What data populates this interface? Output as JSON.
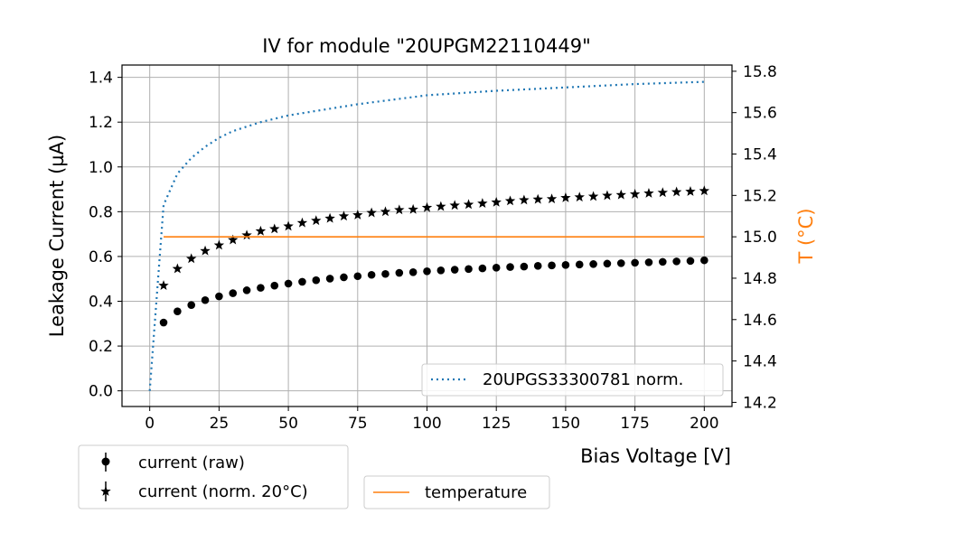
{
  "chart_data": {
    "type": "scatter",
    "title": "IV for module \"20UPGM22110449\"",
    "xlabel": "Bias Voltage [V]",
    "ylabel": "Leakage Current (µA)",
    "y2label": "T (°C)",
    "xlim": [
      -10,
      210
    ],
    "ylim": [
      -0.07,
      1.455
    ],
    "y2lim": [
      14.18,
      15.83
    ],
    "xticks": [
      0,
      25,
      50,
      75,
      100,
      125,
      150,
      175,
      200
    ],
    "yticks": [
      0.0,
      0.2,
      0.4,
      0.6,
      0.8,
      1.0,
      1.2,
      1.4
    ],
    "y2ticks": [
      14.2,
      14.4,
      14.6,
      14.8,
      15.0,
      15.2,
      15.4,
      15.6,
      15.8
    ],
    "grid": true,
    "series": [
      {
        "name": "current (raw)",
        "marker": "circle",
        "color": "#000000",
        "axis": "left",
        "x": [
          5,
          10,
          15,
          20,
          25,
          30,
          35,
          40,
          45,
          50,
          55,
          60,
          65,
          70,
          75,
          80,
          85,
          90,
          95,
          100,
          105,
          110,
          115,
          120,
          125,
          130,
          135,
          140,
          145,
          150,
          155,
          160,
          165,
          170,
          175,
          180,
          185,
          190,
          195,
          200
        ],
        "y": [
          0.305,
          0.355,
          0.383,
          0.405,
          0.422,
          0.436,
          0.449,
          0.46,
          0.47,
          0.479,
          0.487,
          0.494,
          0.501,
          0.507,
          0.512,
          0.518,
          0.522,
          0.527,
          0.53,
          0.534,
          0.538,
          0.541,
          0.544,
          0.547,
          0.55,
          0.553,
          0.555,
          0.558,
          0.56,
          0.562,
          0.564,
          0.566,
          0.568,
          0.57,
          0.572,
          0.574,
          0.576,
          0.578,
          0.58,
          0.583
        ]
      },
      {
        "name": "current (norm. 20°C)",
        "marker": "star",
        "color": "#000000",
        "axis": "left",
        "x": [
          5,
          10,
          15,
          20,
          25,
          30,
          35,
          40,
          45,
          50,
          55,
          60,
          65,
          70,
          75,
          80,
          85,
          90,
          95,
          100,
          105,
          110,
          115,
          120,
          125,
          130,
          135,
          140,
          145,
          150,
          155,
          160,
          165,
          170,
          175,
          180,
          185,
          190,
          195,
          200
        ],
        "y": [
          0.47,
          0.545,
          0.59,
          0.625,
          0.65,
          0.674,
          0.695,
          0.713,
          0.723,
          0.735,
          0.75,
          0.76,
          0.77,
          0.78,
          0.785,
          0.795,
          0.8,
          0.808,
          0.81,
          0.818,
          0.823,
          0.828,
          0.832,
          0.837,
          0.842,
          0.848,
          0.852,
          0.855,
          0.857,
          0.862,
          0.865,
          0.868,
          0.872,
          0.875,
          0.878,
          0.882,
          0.885,
          0.888,
          0.89,
          0.893
        ]
      },
      {
        "name": "20UPGS33300781 norm.",
        "style": "dotted",
        "color": "#1f77b4",
        "axis": "left",
        "x": [
          0,
          5,
          10,
          15,
          20,
          25,
          30,
          40,
          50,
          60,
          75,
          100,
          125,
          150,
          175,
          200
        ],
        "y": [
          0.0,
          0.83,
          0.97,
          1.04,
          1.09,
          1.13,
          1.16,
          1.2,
          1.23,
          1.25,
          1.28,
          1.32,
          1.34,
          1.355,
          1.37,
          1.38
        ]
      },
      {
        "name": "temperature",
        "style": "solid",
        "color": "#ff7f0e",
        "axis": "right",
        "x": [
          5,
          200
        ],
        "y": [
          15.0,
          15.0
        ]
      }
    ],
    "legends": {
      "upper": [
        "20UPGS33300781 norm."
      ],
      "lower_left": [
        "current (raw)",
        "current (norm. 20°C)"
      ],
      "lower_right": [
        "temperature"
      ]
    }
  }
}
